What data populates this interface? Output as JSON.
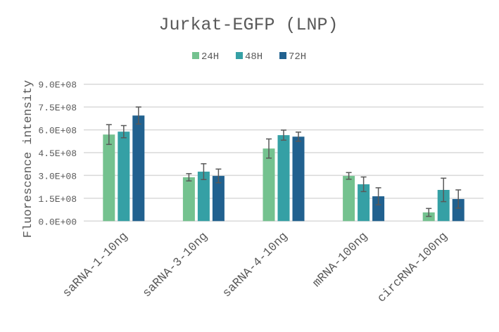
{
  "chart_data": {
    "type": "bar",
    "title": "Jurkat-EGFP (LNP)",
    "xlabel": "",
    "ylabel": "Fluorescence intensity",
    "ylim": [
      0,
      900000000
    ],
    "yticks": [
      0,
      150000000,
      300000000,
      450000000,
      600000000,
      750000000,
      900000000
    ],
    "ytick_labels": [
      "0.0E+00",
      "1.5E+08",
      "3.0E+08",
      "4.5E+08",
      "6.0E+08",
      "7.5E+08",
      "9.0E+08"
    ],
    "grid": true,
    "legend_position": "top",
    "categories": [
      "saRNA-1-10ng",
      "saRNA-3-10ng",
      "saRNA-4-10ng",
      "mRNA-100ng",
      "circRNA-100ng"
    ],
    "series": [
      {
        "name": "24H",
        "color": "#74C28F",
        "values": [
          569000000,
          288000000,
          477000000,
          297000000,
          57000000
        ],
        "errors": [
          65000000,
          24000000,
          63000000,
          22000000,
          26000000
        ]
      },
      {
        "name": "48H",
        "color": "#35A0A5",
        "values": [
          588000000,
          325000000,
          565000000,
          242000000,
          205000000
        ],
        "errors": [
          40000000,
          52000000,
          33000000,
          48000000,
          77000000
        ]
      },
      {
        "name": "72H",
        "color": "#21618F",
        "values": [
          694000000,
          297000000,
          555000000,
          163000000,
          145000000
        ],
        "errors": [
          56000000,
          45000000,
          30000000,
          56000000,
          60000000
        ]
      }
    ]
  }
}
